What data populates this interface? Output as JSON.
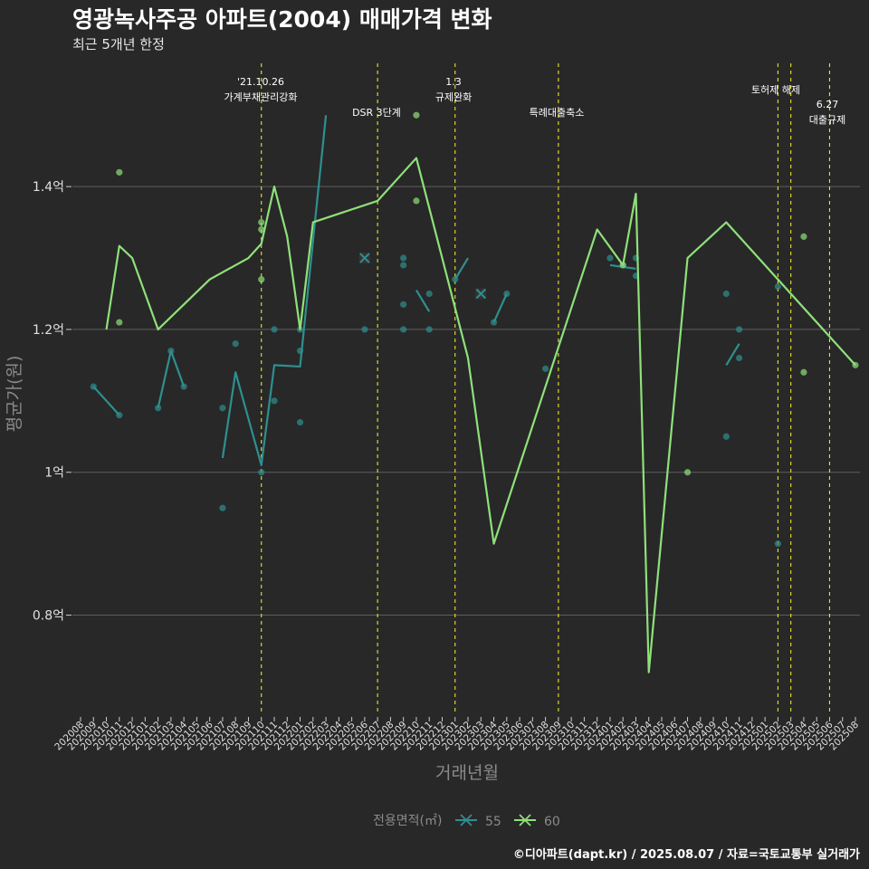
{
  "title": "영광녹사주공 아파트(2004) 매매가격 변화",
  "subtitle": "최근 5개년 한정",
  "caption": "©디아파트(dapt.kr) / 2025.08.07 / 자료=국토교통부 실거래가",
  "chart_data": {
    "type": "line",
    "xlabel": "거래년월",
    "ylabel": "평균가(원)",
    "x_categories": [
      "202008",
      "202009",
      "202010",
      "202011",
      "202012",
      "202101",
      "202102",
      "202103",
      "202104",
      "202105",
      "202106",
      "202107",
      "202108",
      "202109",
      "202110",
      "202111",
      "202112",
      "202201",
      "202202",
      "202203",
      "202204",
      "202205",
      "202206",
      "202207",
      "202208",
      "202209",
      "202210",
      "202211",
      "202212",
      "202301",
      "202302",
      "202303",
      "202304",
      "202305",
      "202306",
      "202307",
      "202308",
      "202309",
      "202310",
      "202311",
      "202312",
      "202401",
      "202402",
      "202403",
      "202404",
      "202405",
      "202406",
      "202407",
      "202408",
      "202409",
      "202410",
      "202411",
      "202412",
      "202501",
      "202502",
      "202503",
      "202504",
      "202505",
      "202506",
      "202507",
      "202508"
    ],
    "y_ticks": [
      {
        "value": 0.8,
        "label": "0.8억"
      },
      {
        "value": 1.0,
        "label": "1억"
      },
      {
        "value": 1.2,
        "label": "1.2억"
      },
      {
        "value": 1.4,
        "label": "1.4억"
      }
    ],
    "ylim": [
      0.66,
      1.57
    ],
    "grid": true,
    "legend": {
      "title": "전용면적(㎡)",
      "position": "bottom"
    },
    "series": [
      {
        "name": "55",
        "color": "#2f8f8f",
        "line": [
          [
            "202009",
            1.12
          ],
          [
            "202011",
            1.08
          ],
          null,
          [
            "202102",
            1.09
          ],
          [
            "202103",
            1.17
          ],
          [
            "202104",
            1.12
          ],
          null,
          [
            "202107",
            1.02
          ],
          [
            "202108",
            1.14
          ],
          [
            "202110",
            1.01
          ],
          [
            "202111",
            1.15
          ],
          [
            "202201",
            1.148
          ],
          [
            "202203",
            1.5
          ],
          null,
          [
            "202210",
            1.255
          ],
          [
            "202211",
            1.225
          ],
          null,
          [
            "202301",
            1.27
          ],
          [
            "202302",
            1.3
          ],
          null,
          [
            "202304",
            1.21
          ],
          [
            "202305",
            1.25
          ],
          null,
          [
            "202401",
            1.29
          ],
          [
            "202403",
            1.285
          ],
          null,
          [
            "202410",
            1.15
          ],
          [
            "202411",
            1.18
          ]
        ],
        "points": [
          [
            "202009",
            1.12
          ],
          [
            "202011",
            1.08
          ],
          [
            "202102",
            1.09
          ],
          [
            "202103",
            1.17
          ],
          [
            "202104",
            1.12
          ],
          [
            "202107",
            1.09
          ],
          [
            "202107",
            0.95
          ],
          [
            "202108",
            1.18
          ],
          [
            "202110",
            1.0
          ],
          [
            "202111",
            1.2
          ],
          [
            "202111",
            1.1
          ],
          [
            "202201",
            1.2
          ],
          [
            "202201",
            1.17
          ],
          [
            "202201",
            1.07
          ],
          [
            "202206",
            1.2
          ],
          [
            "202209",
            1.3
          ],
          [
            "202209",
            1.29
          ],
          [
            "202209",
            1.235
          ],
          [
            "202209",
            1.2
          ],
          [
            "202211",
            1.25
          ],
          [
            "202211",
            1.2
          ],
          [
            "202301",
            1.27
          ],
          [
            "202304",
            1.21
          ],
          [
            "202305",
            1.25
          ],
          [
            "202308",
            1.145
          ],
          [
            "202401",
            1.3
          ],
          [
            "202402",
            1.29
          ],
          [
            "202403",
            1.3
          ],
          [
            "202403",
            1.275
          ],
          [
            "202410",
            1.25
          ],
          [
            "202410",
            1.05
          ],
          [
            "202411",
            1.2
          ],
          [
            "202411",
            1.16
          ],
          [
            "202502",
            1.26
          ],
          [
            "202502",
            0.9
          ]
        ],
        "crosses": [
          [
            "202206",
            1.3
          ],
          [
            "202303",
            1.25
          ]
        ]
      },
      {
        "name": "60",
        "color": "#8fe07a",
        "line": [
          [
            "202010",
            1.2
          ],
          [
            "202011",
            1.317
          ],
          [
            "202012",
            1.3
          ],
          [
            "202102",
            1.2
          ],
          [
            "202106",
            1.27
          ],
          [
            "202109",
            1.3
          ],
          [
            "202110",
            1.32
          ],
          [
            "202111",
            1.4
          ],
          [
            "202112",
            1.33
          ],
          [
            "202201",
            1.2
          ],
          [
            "202202",
            1.35
          ],
          [
            "202207",
            1.38
          ],
          [
            "202210",
            1.44
          ],
          [
            "202302",
            1.16
          ],
          [
            "202304",
            0.9
          ],
          [
            "202312",
            1.34
          ],
          [
            "202402",
            1.29
          ],
          [
            "202403",
            1.39
          ],
          [
            "202404",
            0.72
          ],
          [
            "202407",
            1.3
          ],
          [
            "202410",
            1.35
          ],
          [
            "202508",
            1.15
          ]
        ],
        "points": [
          [
            "202011",
            1.42
          ],
          [
            "202011",
            1.21
          ],
          [
            "202110",
            1.35
          ],
          [
            "202110",
            1.34
          ],
          [
            "202110",
            1.27
          ],
          [
            "202210",
            1.5
          ],
          [
            "202210",
            1.38
          ],
          [
            "202402",
            1.29
          ],
          [
            "202407",
            1.0
          ],
          [
            "202504",
            1.33
          ],
          [
            "202504",
            1.14
          ],
          [
            "202508",
            1.15
          ]
        ],
        "crosses": []
      }
    ],
    "annotations": [
      {
        "x": "202110",
        "label": "'21.10.26\n가계부채관리강화"
      },
      {
        "x": "202207",
        "label": "DSR 3단계"
      },
      {
        "x": "202301",
        "label": "1.3\n규제완화"
      },
      {
        "x": "202309",
        "label": "특례대출축소"
      },
      {
        "x": "202502",
        "label": "토허제 해제"
      },
      {
        "x": "202503",
        "label": ""
      },
      {
        "x": "202506",
        "label": "6.27\n대출규제"
      }
    ]
  }
}
